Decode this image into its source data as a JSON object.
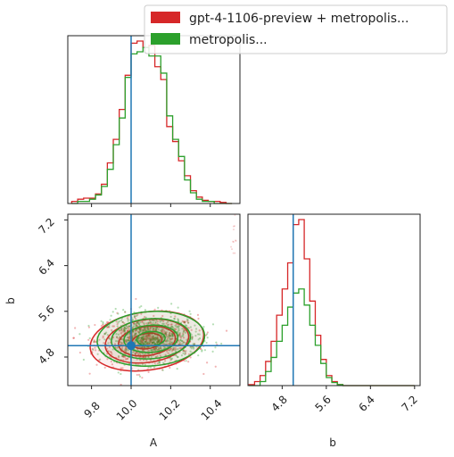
{
  "chart_data": {
    "type": "corner",
    "parameters": [
      "A",
      "b"
    ],
    "truths": {
      "A": 10.0,
      "b": 5.0
    },
    "colors": {
      "series1": "#d62728",
      "series2": "#2ca02c",
      "truth": "#1f77b4"
    },
    "legend": {
      "placement": "top-right",
      "entries": [
        "gpt-4-1106-preview + metropolis...",
        "metropolis..."
      ]
    },
    "A_hist": {
      "xlim": [
        9.68,
        10.55
      ],
      "bin_edges": [
        9.7,
        9.73,
        9.76,
        9.79,
        9.82,
        9.85,
        9.88,
        9.91,
        9.94,
        9.97,
        10.0,
        10.03,
        10.06,
        10.09,
        10.12,
        10.15,
        10.18,
        10.21,
        10.24,
        10.27,
        10.3,
        10.33,
        10.36,
        10.39,
        10.42,
        10.45,
        10.48,
        10.51
      ],
      "series": [
        {
          "name": "gpt-4-1106-preview + metropolis...",
          "counts": [
            2,
            4,
            5,
            5,
            9,
            18,
            38,
            60,
            88,
            120,
            150,
            152,
            146,
            148,
            128,
            116,
            72,
            58,
            40,
            26,
            12,
            6,
            3,
            2,
            2,
            1,
            0
          ]
        },
        {
          "name": "metropolis...",
          "counts": [
            0,
            2,
            2,
            4,
            8,
            16,
            32,
            55,
            80,
            118,
            140,
            142,
            146,
            138,
            138,
            122,
            82,
            60,
            44,
            22,
            10,
            4,
            2,
            2,
            0,
            0,
            0
          ]
        }
      ]
    },
    "b_hist": {
      "xlim": [
        4.18,
        7.3
      ],
      "xticks": [
        4.8,
        5.6,
        6.4,
        7.2
      ],
      "bin_edges": [
        4.2,
        4.3,
        4.4,
        4.5,
        4.6,
        4.7,
        4.8,
        4.9,
        5.0,
        5.1,
        5.2,
        5.3,
        5.4,
        5.5,
        5.6,
        5.7,
        5.8,
        5.9,
        6.0,
        6.1,
        6.2,
        6.3,
        6.4,
        6.5,
        6.6,
        6.7,
        6.8,
        6.9,
        7.0,
        7.1,
        7.2
      ],
      "series": [
        {
          "name": "gpt-4-1106-preview + metropolis...",
          "counts": [
            1,
            4,
            10,
            24,
            44,
            70,
            96,
            122,
            160,
            165,
            126,
            84,
            50,
            26,
            10,
            4,
            1,
            0,
            0,
            0,
            0,
            0,
            0,
            0,
            0,
            0,
            0,
            0,
            0,
            0
          ]
        },
        {
          "name": "metropolis...",
          "counts": [
            0,
            0,
            4,
            14,
            28,
            44,
            60,
            78,
            92,
            96,
            80,
            60,
            40,
            22,
            8,
            3,
            1,
            0,
            0,
            0,
            0,
            0,
            0,
            0,
            0,
            0,
            0,
            0,
            0,
            0
          ]
        }
      ]
    },
    "joint": {
      "xlim": [
        9.68,
        10.55
      ],
      "ylim": [
        4.3,
        7.3
      ],
      "xticks": [
        9.8,
        10.0,
        10.2,
        10.4
      ],
      "yticks": [
        4.8,
        5.6,
        6.4,
        7.2
      ],
      "xlabel": "A",
      "ylabel": "b",
      "series": [
        {
          "name": "gpt-4-1106-preview + metropolis...",
          "center": [
            10.08,
            5.08
          ],
          "spread": [
            0.17,
            0.3
          ]
        },
        {
          "name": "metropolis...",
          "center": [
            10.1,
            5.12
          ],
          "spread": [
            0.16,
            0.28
          ]
        }
      ]
    },
    "xtick_labels": [
      "9.8",
      "10.0",
      "10.2",
      "10.4"
    ],
    "ytick_labels": [
      "7.2",
      "6.4",
      "5.6",
      "4.8"
    ],
    "btick_labels": [
      "4.8",
      "5.6",
      "6.4",
      "7.2"
    ]
  }
}
